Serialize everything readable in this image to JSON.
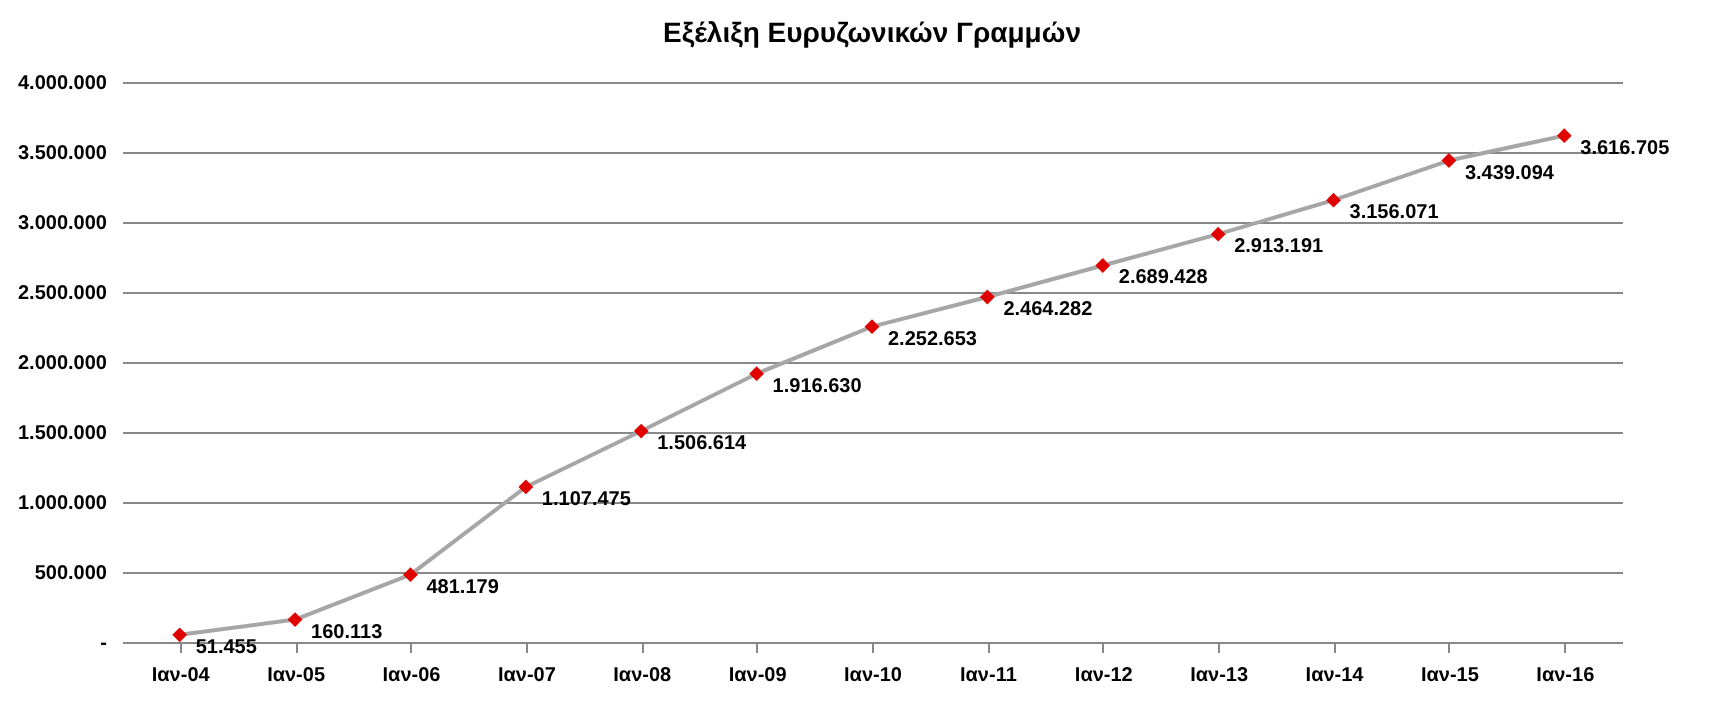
{
  "chart_data": {
    "type": "line",
    "title": "Εξέλιξη Ευρυζωνικών Γραμμών",
    "categories": [
      "Ιαν-04",
      "Ιαν-05",
      "Ιαν-06",
      "Ιαν-07",
      "Ιαν-08",
      "Ιαν-09",
      "Ιαν-10",
      "Ιαν-11",
      "Ιαν-12",
      "Ιαν-13",
      "Ιαν-14",
      "Ιαν-15",
      "Ιαν-16"
    ],
    "series": [
      {
        "color": "#a6a6a6",
        "colors": [
          "#e00000",
          "#e00000",
          "#e00000",
          "#e00000",
          "#e00000",
          "#e00000",
          "#e00000",
          "#e00000",
          "#e00000",
          "#e00000",
          "#e00000",
          "#e00000",
          "#e00000"
        ],
        "values": [
          51455,
          160113,
          481179,
          1107475,
          1506614,
          1916630,
          2252653,
          2464282,
          2689428,
          2913191,
          3156071,
          3439094,
          3616705
        ],
        "value_labels": [
          "51.455",
          "160.113",
          "481.179",
          "1.107.475",
          "1.506.614",
          "1.916.630",
          "2.252.653",
          "2.464.282",
          "2.689.428",
          "2.913.191",
          "3.156.071",
          "3.439.094",
          "3.616.705"
        ]
      }
    ],
    "ylim": [
      0,
      4000000
    ],
    "yticks": [
      {
        "value": 0,
        "label": "-"
      },
      {
        "value": 500000,
        "label": "500.000"
      },
      {
        "value": 1000000,
        "label": "1.000.000"
      },
      {
        "value": 1500000,
        "label": "1.500.000"
      },
      {
        "value": 2000000,
        "label": "2.000.000"
      },
      {
        "value": 2500000,
        "label": "2.500.000"
      },
      {
        "value": 3000000,
        "label": "3.000.000"
      },
      {
        "value": 3500000,
        "label": "3.500.000"
      },
      {
        "value": 4000000,
        "label": "4.000.000"
      }
    ],
    "grid": "y",
    "marker": "diamond",
    "line_style": "solid"
  }
}
